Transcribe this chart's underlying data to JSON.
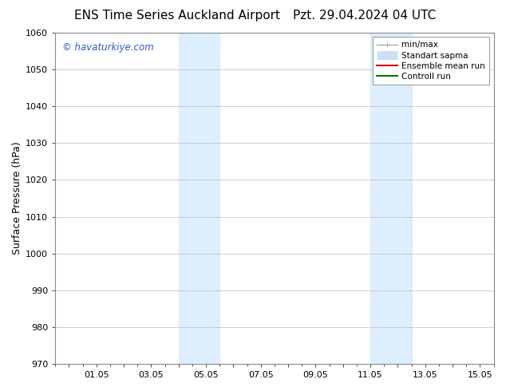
{
  "title_left": "ENS Time Series Auckland Airport",
  "title_right": "Pzt. 29.04.2024 04 UTC",
  "ylabel": "Surface Pressure (hPa)",
  "ylim": [
    970,
    1060
  ],
  "yticks": [
    970,
    980,
    990,
    1000,
    1010,
    1020,
    1030,
    1040,
    1050,
    1060
  ],
  "xlim_start": -0.5,
  "xlim_end": 15.5,
  "xtick_labels": [
    "",
    "01.05",
    "",
    "03.05",
    "",
    "05.05",
    "",
    "07.05",
    "",
    "09.05",
    "",
    "11.05",
    "",
    "13.05",
    "",
    "15.05"
  ],
  "xtick_positions": [
    0,
    1,
    2,
    3,
    4,
    5,
    6,
    7,
    8,
    9,
    10,
    11,
    12,
    13,
    14,
    15
  ],
  "shaded_regions": [
    {
      "xmin": 4.0,
      "xmax": 5.5,
      "color": "#ddeeff"
    },
    {
      "xmin": 11.0,
      "xmax": 12.5,
      "color": "#ddeeff"
    }
  ],
  "watermark_text": "© havaturkiye.com",
  "watermark_color": "#3355cc",
  "legend_entries": [
    {
      "label": "min/max",
      "color": "#aaaaaa",
      "lw": 1.0,
      "ls": "-",
      "type": "minmax"
    },
    {
      "label": "Standart sapma",
      "color": "#cce0f5",
      "lw": 8,
      "ls": "-",
      "type": "band"
    },
    {
      "label": "Ensemble mean run",
      "color": "#cc0000",
      "lw": 1.5,
      "ls": "-",
      "type": "line"
    },
    {
      "label": "Controll run",
      "color": "#007700",
      "lw": 1.5,
      "ls": "-",
      "type": "line"
    }
  ],
  "background_color": "#ffffff",
  "plot_bg_color": "#ffffff",
  "grid_color": "#bbbbbb",
  "title_fontsize": 11,
  "tick_fontsize": 8,
  "ylabel_fontsize": 9
}
